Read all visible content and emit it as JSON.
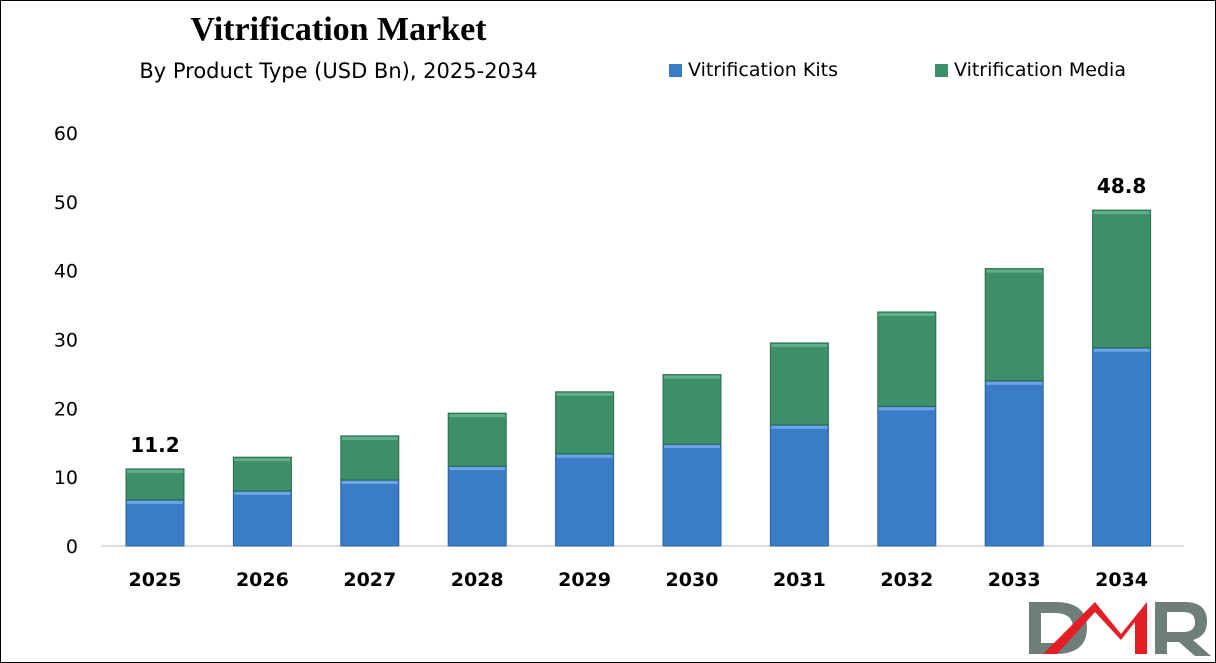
{
  "chart_data": {
    "type": "bar",
    "stacked": true,
    "title": "Vitrification Market",
    "subtitle": "By Product Type (USD Bn), 2025-2034",
    "categories": [
      "2025",
      "2026",
      "2027",
      "2028",
      "2029",
      "2030",
      "2031",
      "2032",
      "2033",
      "2034"
    ],
    "series": [
      {
        "name": "Vitrification Kits",
        "color": "#3a7cc6",
        "values": [
          6.7,
          8.0,
          9.6,
          11.6,
          13.4,
          14.8,
          17.6,
          20.3,
          24.0,
          28.8
        ]
      },
      {
        "name": "Vitrification Media",
        "color": "#3d8f6a",
        "values": [
          4.5,
          4.9,
          6.4,
          7.7,
          9.0,
          10.1,
          11.9,
          13.7,
          16.3,
          20.0
        ]
      }
    ],
    "data_labels": [
      {
        "category": "2025",
        "text": "11.2"
      },
      {
        "category": "2034",
        "text": "48.8"
      }
    ],
    "yticks": [
      "0",
      "10",
      "20",
      "30",
      "40",
      "50",
      "60"
    ],
    "ylim": [
      0,
      60
    ],
    "grid": false,
    "legend_position": "top-right"
  },
  "logo": {
    "text": "DMR"
  }
}
